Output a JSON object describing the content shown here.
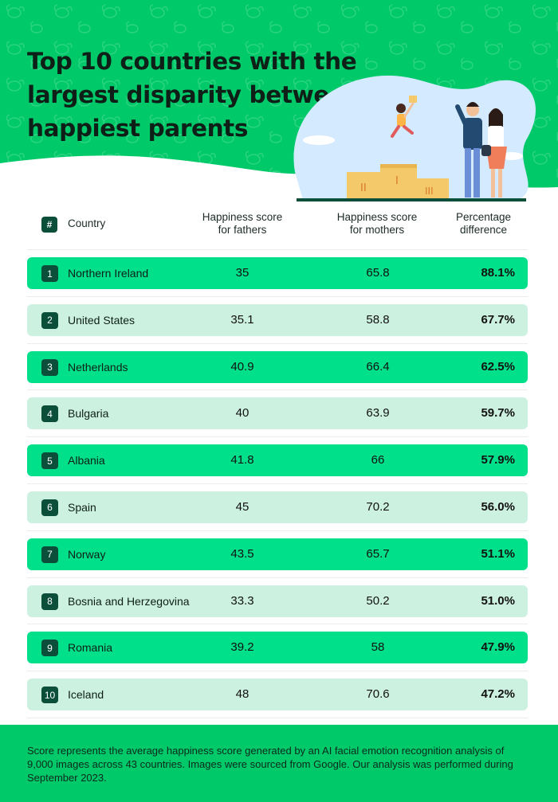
{
  "title": "Top 10 countries with the largest disparity between happiest parents",
  "table": {
    "headers": {
      "rank": "#",
      "country": "Country",
      "fathers_line1": "Happiness score",
      "fathers_line2": "for fathers",
      "mothers_line1": "Happiness score",
      "mothers_line2": "for mothers",
      "diff_line1": "Percentage",
      "diff_line2": "difference"
    },
    "rows": [
      {
        "rank": "1",
        "country": "Northern Ireland",
        "fathers": "35",
        "mothers": "65.8",
        "diff": "88.1%"
      },
      {
        "rank": "2",
        "country": "United States",
        "fathers": "35.1",
        "mothers": "58.8",
        "diff": "67.7%"
      },
      {
        "rank": "3",
        "country": "Netherlands",
        "fathers": "40.9",
        "mothers": "66.4",
        "diff": "62.5%"
      },
      {
        "rank": "4",
        "country": "Bulgaria",
        "fathers": "40",
        "mothers": "63.9",
        "diff": "59.7%"
      },
      {
        "rank": "5",
        "country": "Albania",
        "fathers": "41.8",
        "mothers": "66",
        "diff": "57.9%"
      },
      {
        "rank": "6",
        "country": "Spain",
        "fathers": "45",
        "mothers": "70.2",
        "diff": "56.0%"
      },
      {
        "rank": "7",
        "country": "Norway",
        "fathers": "43.5",
        "mothers": "65.7",
        "diff": "51.1%"
      },
      {
        "rank": "8",
        "country": "Bosnia and Herzegovina",
        "fathers": "33.3",
        "mothers": "50.2",
        "diff": "51.0%"
      },
      {
        "rank": "9",
        "country": "Romania",
        "fathers": "39.2",
        "mothers": "58",
        "diff": "47.9%"
      },
      {
        "rank": "10",
        "country": "Iceland",
        "fathers": "48",
        "mothers": "70.6",
        "diff": "47.2%"
      }
    ]
  },
  "footer": {
    "note": "Score represents the average happiness score generated by an AI facial emotion recognition analysis of 9,000 images across 43 countries. Images were sourced from Google. Our analysis was performed during September 2023."
  },
  "colors": {
    "header_green": "#00c96a",
    "row_bright": "#00e08a",
    "row_light": "#cdf1e0",
    "badge_dark": "#0b4f3a",
    "blob_blue": "#d4eaff"
  },
  "icons": {
    "illustration": "parents-podium-illustration",
    "pattern": "dog-pattern-background"
  }
}
